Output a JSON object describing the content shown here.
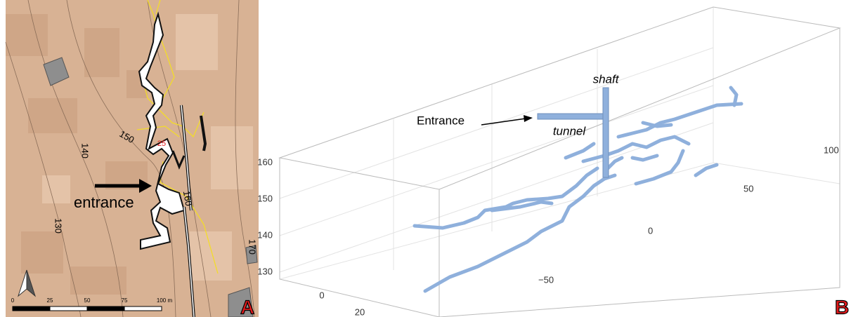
{
  "panel_a": {
    "label": "A",
    "annotation": "entrance",
    "contour_labels": [
      "150",
      "140",
      "130",
      "160",
      "170"
    ],
    "station_label": "25",
    "scale_bar": [
      "0",
      "25",
      "50",
      "75",
      "100 m"
    ]
  },
  "panel_b": {
    "label": "B",
    "shaft": "shaft",
    "tunnel": "tunnel",
    "entrance": "Entrance",
    "z_ticks": [
      "160",
      "150",
      "140",
      "130"
    ],
    "y_ticks": [
      "100",
      "50",
      "0",
      "−50"
    ],
    "x_ticks": [
      "0",
      "20"
    ]
  }
}
